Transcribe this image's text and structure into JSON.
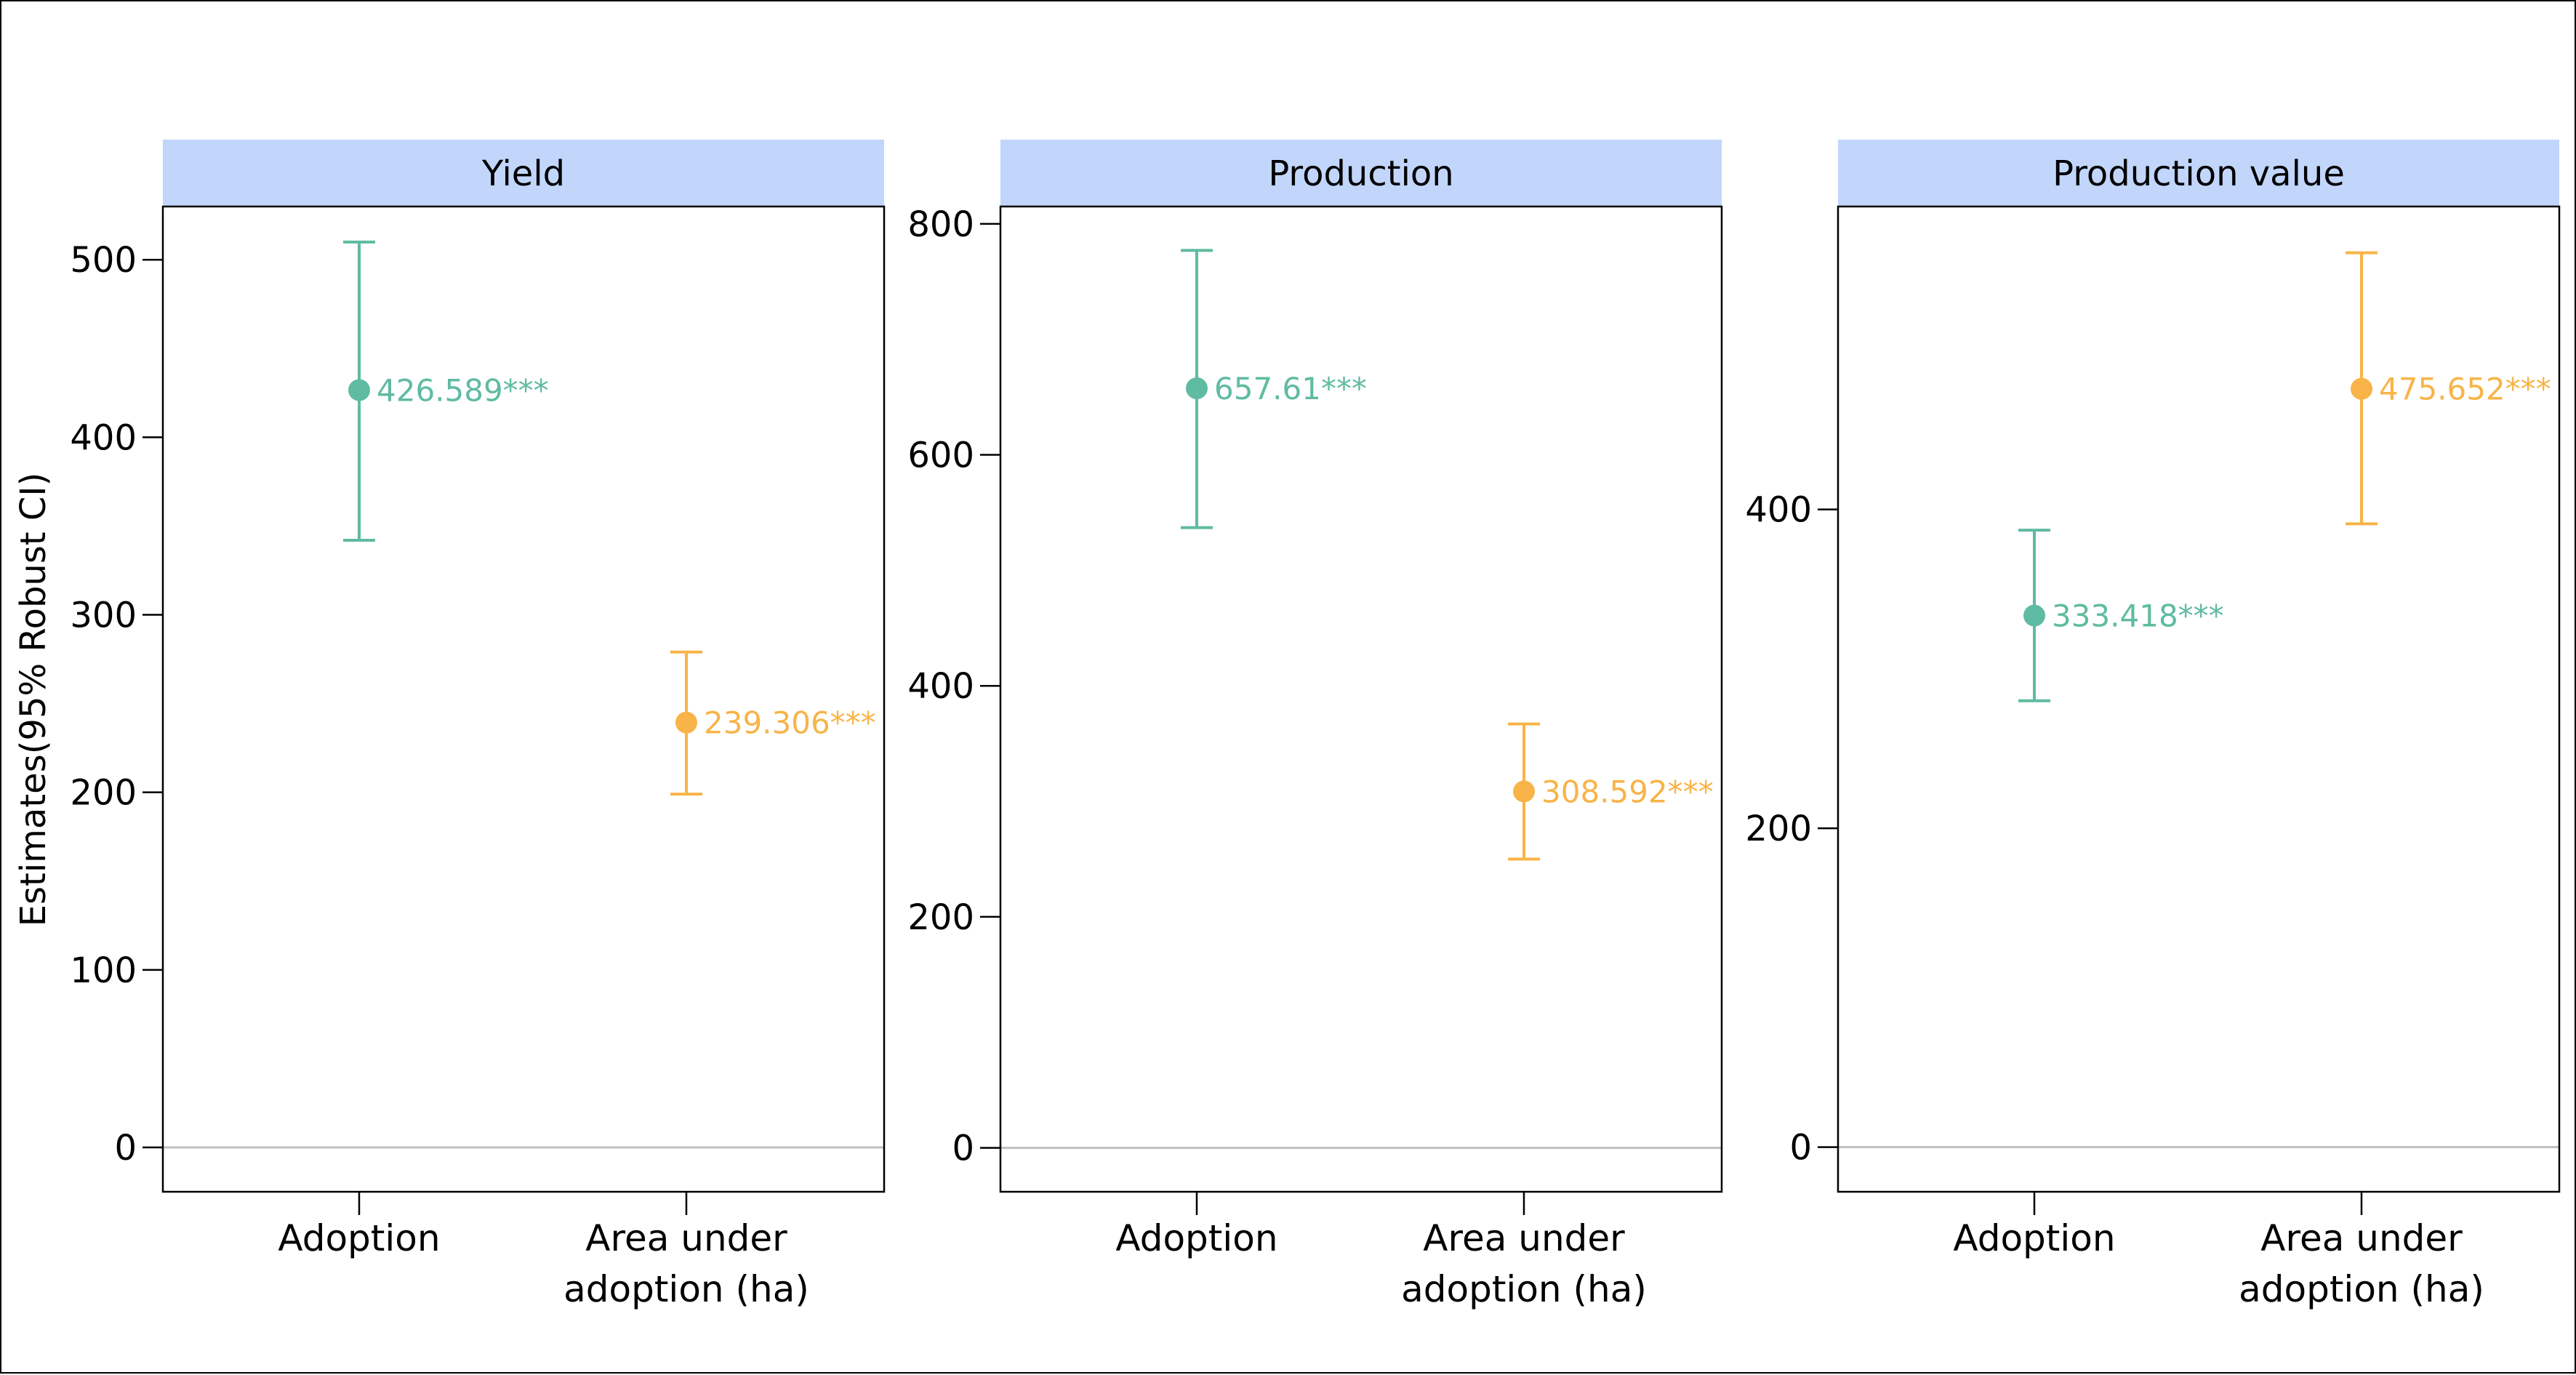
{
  "colors": {
    "adoption": "#5fbba1",
    "area": "#f8b448",
    "strip": "#c2d6fb",
    "zero_line": "#c0c0c0"
  },
  "chart_data": {
    "type": "scatter",
    "ylabel": "Estimates(95% Robust CI)",
    "categories": [
      "Adoption",
      "Area under\nadoption (ha)"
    ],
    "panels": [
      {
        "title": "Yield",
        "ylim": [
          -25,
          530
        ],
        "yticks": [
          0,
          100,
          200,
          300,
          400,
          500
        ],
        "points": [
          {
            "category": "Adoption",
            "estimate": 426.589,
            "ci": [
              342,
              510
            ],
            "label": "426.589***"
          },
          {
            "category": "Area under adoption (ha)",
            "estimate": 239.306,
            "ci": [
              199,
              279
            ],
            "label": "239.306***"
          }
        ]
      },
      {
        "title": "Production",
        "ylim": [
          -38,
          815
        ],
        "yticks": [
          0,
          200,
          400,
          600,
          800
        ],
        "points": [
          {
            "category": "Adoption",
            "estimate": 657.61,
            "ci": [
              537,
              777
            ],
            "label": "657.61***"
          },
          {
            "category": "Area under adoption (ha)",
            "estimate": 308.592,
            "ci": [
              250,
              367
            ],
            "label": "308.592***"
          }
        ]
      },
      {
        "title": "Production value",
        "ylim": [
          -28,
          590
        ],
        "yticks": [
          0,
          200,
          400
        ],
        "points": [
          {
            "category": "Adoption",
            "estimate": 333.418,
            "ci": [
              280,
              387
            ],
            "label": "333.418***"
          },
          {
            "category": "Area under adoption (ha)",
            "estimate": 475.652,
            "ci": [
              391,
              561
            ],
            "label": "475.652***"
          }
        ]
      }
    ]
  }
}
